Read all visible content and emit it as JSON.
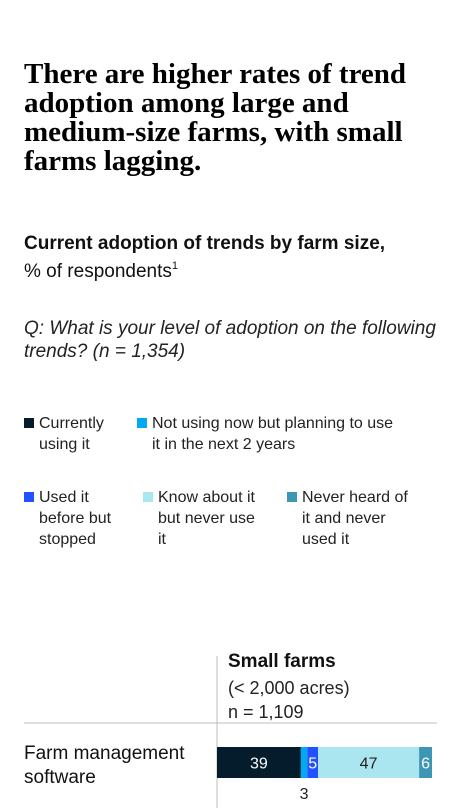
{
  "headline": "There are higher rates of trend adoption among large and medium-size farms, with small farms lagging.",
  "subtitle": {
    "main": "Current adoption of trends by farm size,",
    "unit": "% of respondents",
    "footnote_mark": "1"
  },
  "question": "Q: What is your level of adoption on the following trends? (n = 1,354)",
  "legend": [
    {
      "label": "Currently using it",
      "color": "#051c2c",
      "swatch_name": "legend-swatch-currently-using"
    },
    {
      "label": "Not using now but planning to use it in the next 2 years",
      "color": "#00a9f4",
      "swatch_name": "legend-swatch-planning"
    },
    {
      "label": "Used it before but stopped",
      "color": "#2251ff",
      "swatch_name": "legend-swatch-used-before"
    },
    {
      "label": "Know about it but never use it",
      "color": "#aae6f0",
      "swatch_name": "legend-swatch-know-never-use"
    },
    {
      "label": "Never heard of it and never used it",
      "color": "#3c96b4",
      "swatch_name": "legend-swatch-never-heard"
    }
  ],
  "chart_data": {
    "type": "bar",
    "orientation": "horizontal",
    "stacked": true,
    "panel": {
      "title": "Small farms",
      "subtitle_lines": [
        "(< 2,000 acres)",
        "n = 1,109"
      ]
    },
    "categories": [
      "Farm management software"
    ],
    "series": [
      {
        "name": "Currently using it",
        "color": "#051c2c",
        "label_color": "#ffffff",
        "values": [
          39
        ]
      },
      {
        "name": "Not using now but planning to use it in the next 2 years",
        "color": "#00a9f4",
        "label_color": "#222222",
        "values": [
          3
        ]
      },
      {
        "name": "Used it before but stopped",
        "color": "#2251ff",
        "label_color": "#ffffff",
        "values": [
          5
        ]
      },
      {
        "name": "Know about it but never use it",
        "color": "#aae6f0",
        "label_color": "#222222",
        "values": [
          47
        ]
      },
      {
        "name": "Never heard of it and never used it",
        "color": "#3c96b4",
        "label_color": "#ffffff",
        "values": [
          6
        ]
      }
    ],
    "xlim": [
      0,
      100
    ],
    "gridlines": false
  }
}
